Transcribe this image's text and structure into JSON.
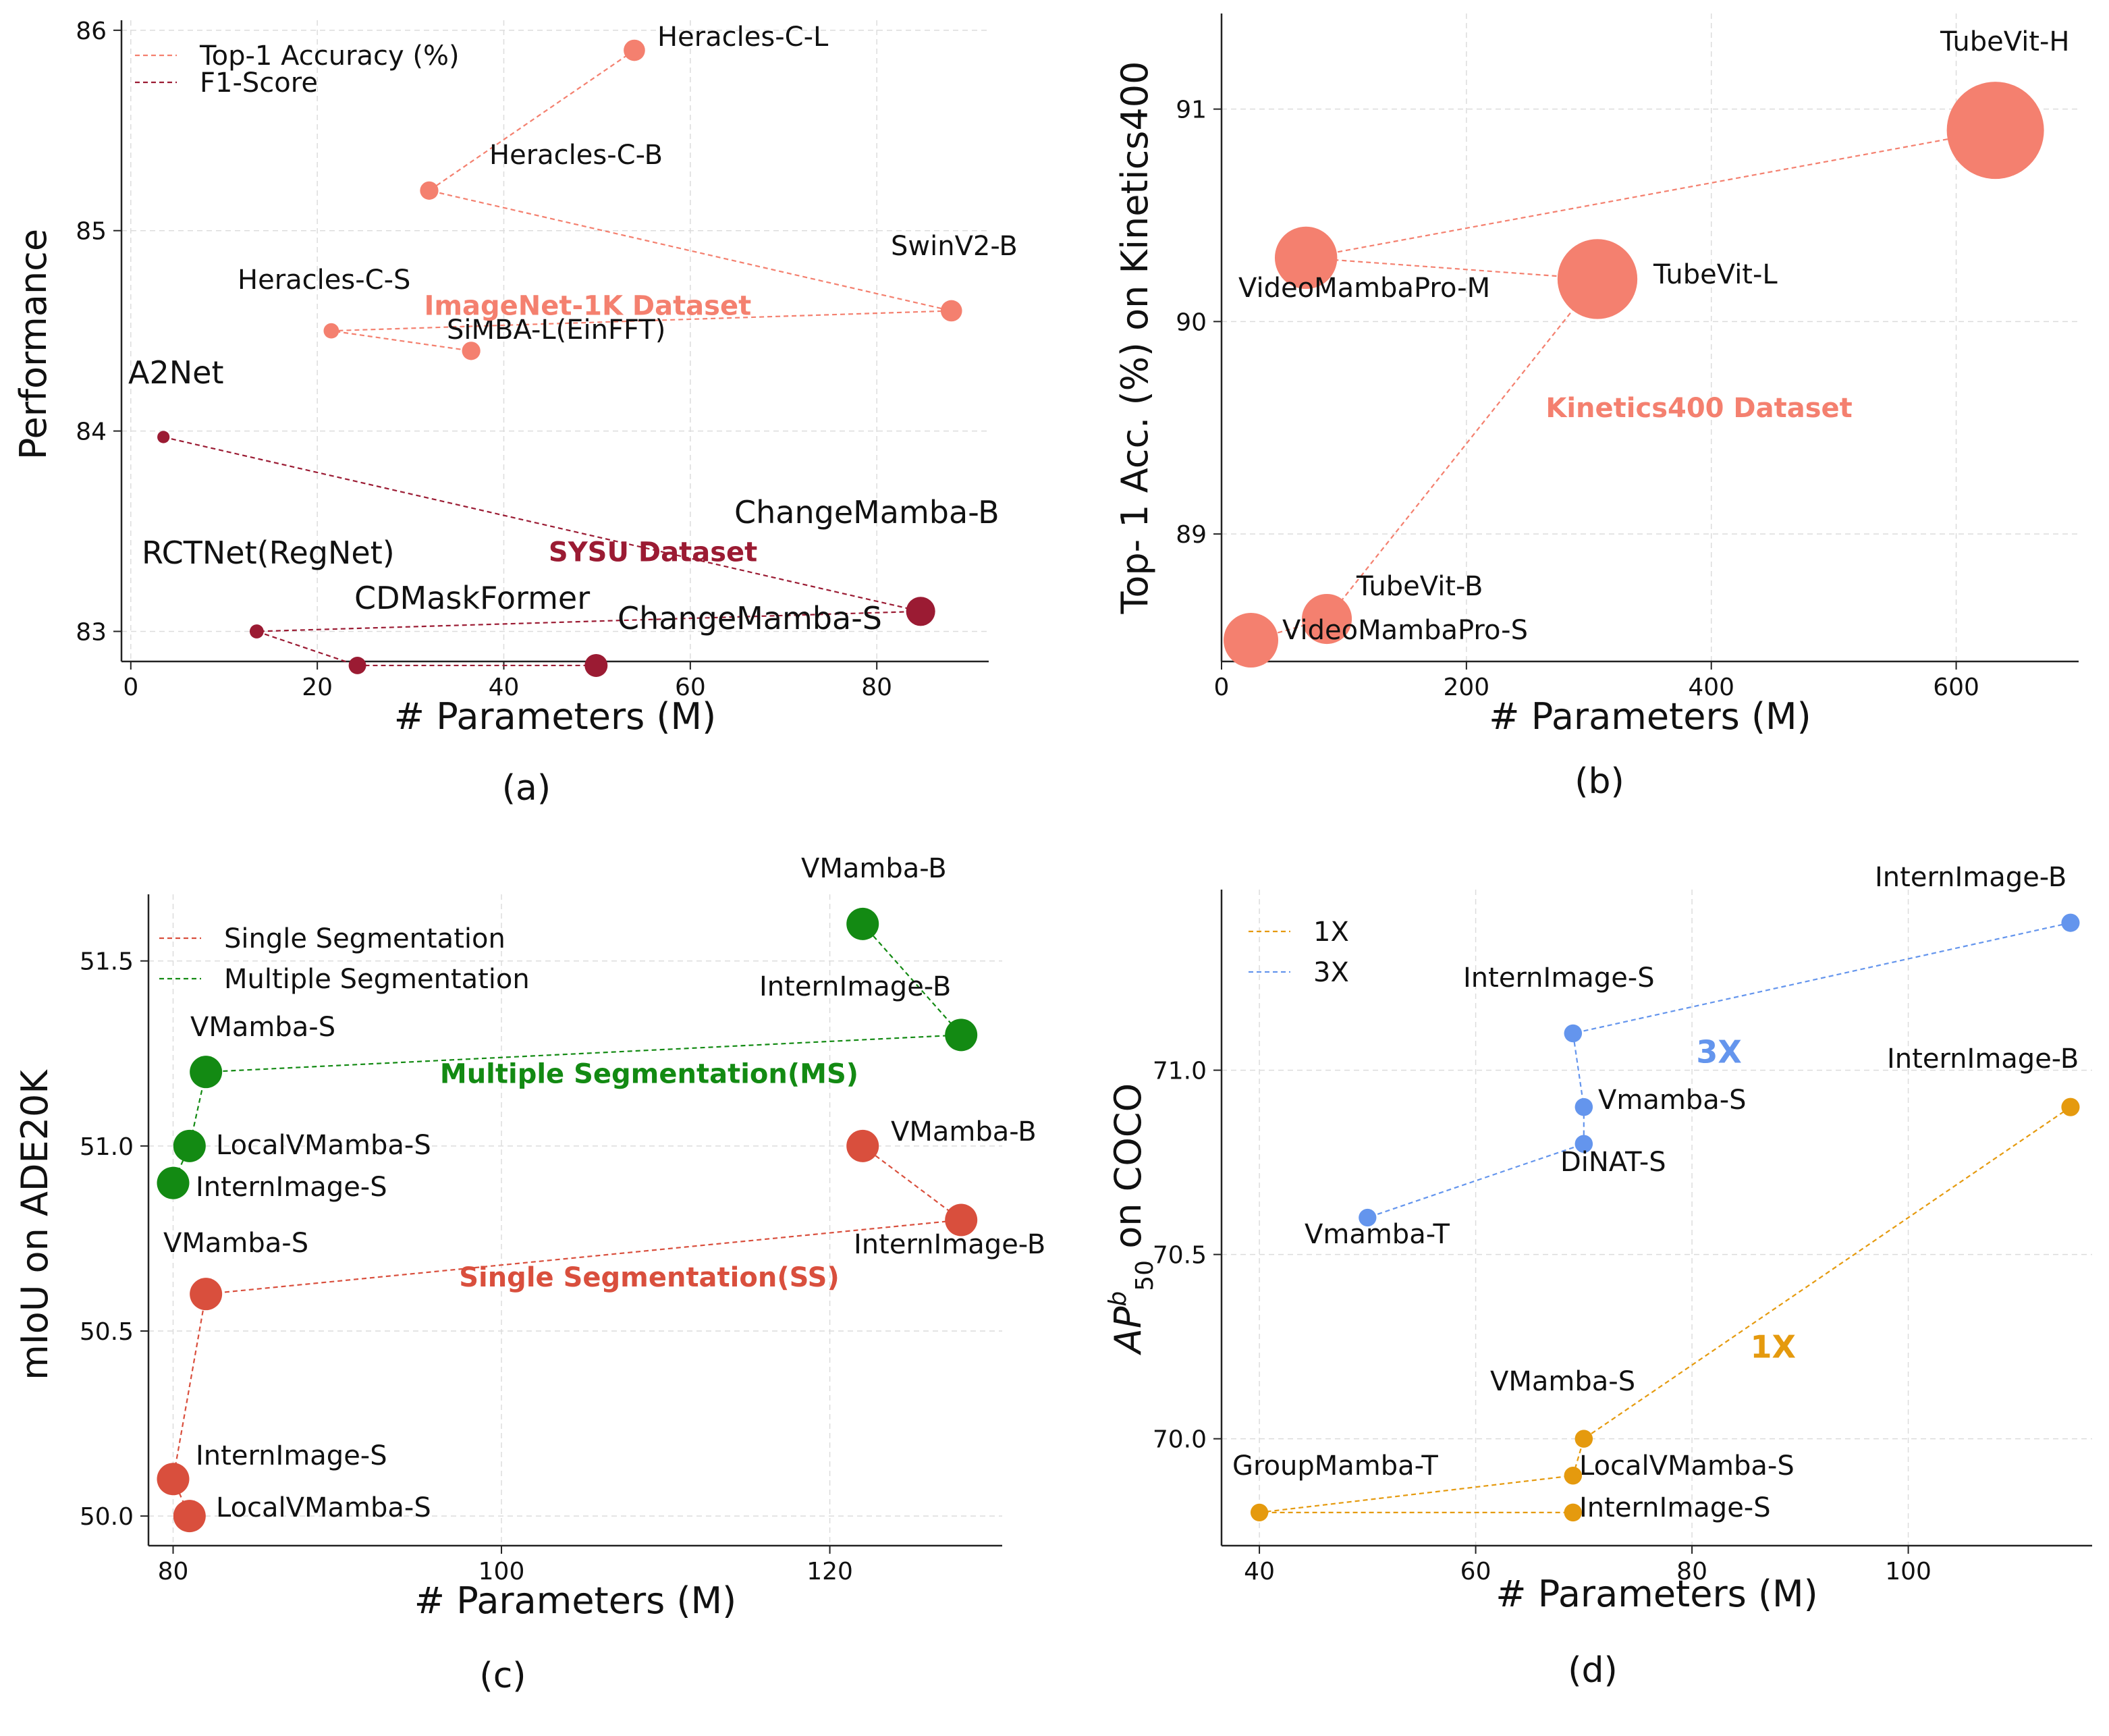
{
  "chart_data": [
    {
      "type": "scatter",
      "caption": "(a)",
      "xlabel": "# Parameters (M)",
      "ylabel": "Performance",
      "xlim": [
        -1,
        92
      ],
      "ylim": [
        82.85,
        86.05
      ],
      "xticks": [
        0,
        20,
        40,
        60,
        80
      ],
      "yticks": [
        83,
        84,
        85,
        86
      ],
      "grid": true,
      "legend": {
        "position": "top-left",
        "entries": [
          {
            "label": "Top-1 Accuracy (%)",
            "color": "#f4806f"
          },
          {
            "label": "F1-Score",
            "color": "#9b1b33"
          }
        ]
      },
      "annotations": [
        {
          "text": "ImageNet-1K Dataset",
          "x": 49,
          "y": 84.58,
          "color": "#f4806f"
        },
        {
          "text": "SYSU Dataset",
          "x": 56,
          "y": 83.35,
          "color": "#9b1b33"
        }
      ],
      "series": [
        {
          "name": "Top-1 Accuracy (%)",
          "color": "#f4806f",
          "points": [
            {
              "label": "Heracles-C-L",
              "x": 54,
              "y": 85.9,
              "size": 0.2
            },
            {
              "label": "Heracles-C-B",
              "x": 32,
              "y": 85.2,
              "size": 0.12
            },
            {
              "label": "SwinV2-B",
              "x": 88,
              "y": 84.6,
              "size": 0.2
            },
            {
              "label": "Heracles-C-S",
              "x": 21.5,
              "y": 84.5,
              "size": 0.06
            },
            {
              "label": "SiMBA-L(EinFFT)",
              "x": 36.5,
              "y": 84.4,
              "size": 0.12
            }
          ]
        },
        {
          "name": "F1-Score",
          "color": "#9b1b33",
          "points": [
            {
              "label": "A2Net",
              "x": 3.5,
              "y": 83.97,
              "size": 0.02
            },
            {
              "label": "ChangeMamba-B",
              "x": 84.7,
              "y": 83.1,
              "size": 0.5
            },
            {
              "label": "RCTNet(RegNet)",
              "x": 13.5,
              "y": 83.0,
              "size": 0.04
            },
            {
              "label": "CDMaskFormer",
              "x": 24.3,
              "y": 82.83,
              "size": 0.1
            },
            {
              "label": "ChangeMamba-S",
              "x": 49.9,
              "y": 82.83,
              "size": 0.25
            }
          ]
        }
      ]
    },
    {
      "type": "scatter",
      "caption": "(b)",
      "xlabel": "# Parameters (M)",
      "ylabel": "Top- 1 Acc. (%) on Kinetics400",
      "xlim": [
        0,
        700
      ],
      "ylim": [
        88.4,
        91.45
      ],
      "xticks": [
        0,
        200,
        400,
        600
      ],
      "yticks": [
        89,
        90,
        91
      ],
      "grid": true,
      "annotations": [
        {
          "text": "Kinetics400 Dataset",
          "x": 390,
          "y": 89.55,
          "color": "#f4806f"
        }
      ],
      "series": [
        {
          "name": "",
          "color": "#f4806f",
          "points": [
            {
              "label": "TubeVit-H",
              "x": 632,
              "y": 90.9,
              "size": 1.0
            },
            {
              "label": "VideoMambaPro-M",
              "x": 69,
              "y": 90.3,
              "size": 0.3
            },
            {
              "label": "TubeVit-L",
              "x": 307,
              "y": 90.2,
              "size": 0.6
            },
            {
              "label": "TubeVit-B",
              "x": 86,
              "y": 88.6,
              "size": 0.15
            },
            {
              "label": "VideoMambaPro-S",
              "x": 24,
              "y": 88.5,
              "size": 0.2
            }
          ]
        }
      ]
    },
    {
      "type": "scatter",
      "caption": "(c)",
      "xlabel": "# Parameters (M)",
      "ylabel": "mIoU on ADE20K",
      "xlim": [
        78.5,
        130.5
      ],
      "ylim": [
        49.92,
        51.68
      ],
      "xticks": [
        80,
        100,
        120
      ],
      "yticks": [
        50.0,
        50.5,
        51.0,
        51.5
      ],
      "grid": true,
      "legend": {
        "position": "top-left",
        "entries": [
          {
            "label": "Single Segmentation",
            "color": "#d94f3d"
          },
          {
            "label": "Multiple Segmentation",
            "color": "#138a13"
          }
        ]
      },
      "annotations": [
        {
          "text": "Multiple Segmentation(MS)",
          "x": 109,
          "y": 51.17,
          "color": "#138a13"
        },
        {
          "text": "Single Segmentation(SS)",
          "x": 109,
          "y": 50.62,
          "color": "#d94f3d"
        }
      ],
      "series": [
        {
          "name": "Multiple Segmentation",
          "color": "#138a13",
          "points": [
            {
              "label": "VMamba-B",
              "x": 122,
              "y": 51.6,
              "size": 0.3
            },
            {
              "label": "InternImage-B",
              "x": 128,
              "y": 51.3,
              "size": 0.3
            },
            {
              "label": "VMamba-S",
              "x": 82,
              "y": 51.2,
              "size": 0.3
            },
            {
              "label": "LocalVMamba-S",
              "x": 81,
              "y": 51.0,
              "size": 0.3
            },
            {
              "label": "InternImage-S",
              "x": 80,
              "y": 50.9,
              "size": 0.3
            }
          ]
        },
        {
          "name": "Single Segmentation",
          "color": "#d94f3d",
          "points": [
            {
              "label": "VMamba-B",
              "x": 122,
              "y": 51.0,
              "size": 0.3
            },
            {
              "label": "InternImage-B",
              "x": 128,
              "y": 50.8,
              "size": 0.3
            },
            {
              "label": "VMamba-S",
              "x": 82,
              "y": 50.6,
              "size": 0.3
            },
            {
              "label": "InternImage-S",
              "x": 80,
              "y": 50.1,
              "size": 0.3
            },
            {
              "label": "LocalVMamba-S",
              "x": 81,
              "y": 50.0,
              "size": 0.3
            }
          ]
        }
      ]
    },
    {
      "type": "scatter",
      "caption": "(d)",
      "xlabel": "# Parameters (M)",
      "ylabel": "AP^b_50 on COCO",
      "xlim": [
        36.5,
        117
      ],
      "ylim": [
        69.71,
        71.49
      ],
      "xticks": [
        40,
        60,
        80,
        100
      ],
      "yticks": [
        70.0,
        70.5,
        71.0
      ],
      "grid": true,
      "legend": {
        "position": "top-left",
        "entries": [
          {
            "label": "1X",
            "color": "#e59a0e"
          },
          {
            "label": "3X",
            "color": "#6495ed"
          }
        ]
      },
      "annotations": [
        {
          "text": "3X",
          "x": 82.5,
          "y": 71.02,
          "color": "#6495ed"
        },
        {
          "text": "1X",
          "x": 87.5,
          "y": 70.22,
          "color": "#e59a0e"
        }
      ],
      "series": [
        {
          "name": "3X",
          "color": "#6495ed",
          "points": [
            {
              "label": "InternImage-B",
              "x": 115,
              "y": 71.4,
              "size": 0.15
            },
            {
              "label": "InternImage-S",
              "x": 69,
              "y": 71.1,
              "size": 0.1
            },
            {
              "label": "Vmamba-S",
              "x": 70,
              "y": 70.9,
              "size": 0.1
            },
            {
              "label": "DiNAT-S",
              "x": 70,
              "y": 70.8,
              "size": 0.1
            },
            {
              "label": "Vmamba-T",
              "x": 50,
              "y": 70.6,
              "size": 0.08
            }
          ]
        },
        {
          "name": "1X",
          "color": "#e59a0e",
          "points": [
            {
              "label": "InternImage-B",
              "x": 115,
              "y": 70.9,
              "size": 0.15
            },
            {
              "label": "VMamba-S",
              "x": 70,
              "y": 70.0,
              "size": 0.1
            },
            {
              "label": "LocalVMamba-S",
              "x": 69,
              "y": 69.9,
              "size": 0.1
            },
            {
              "label": "GroupMamba-T",
              "x": 40,
              "y": 69.8,
              "size": 0.08
            },
            {
              "label": "InternImage-S",
              "x": 69,
              "y": 69.8,
              "size": 0.1
            }
          ]
        }
      ]
    }
  ]
}
